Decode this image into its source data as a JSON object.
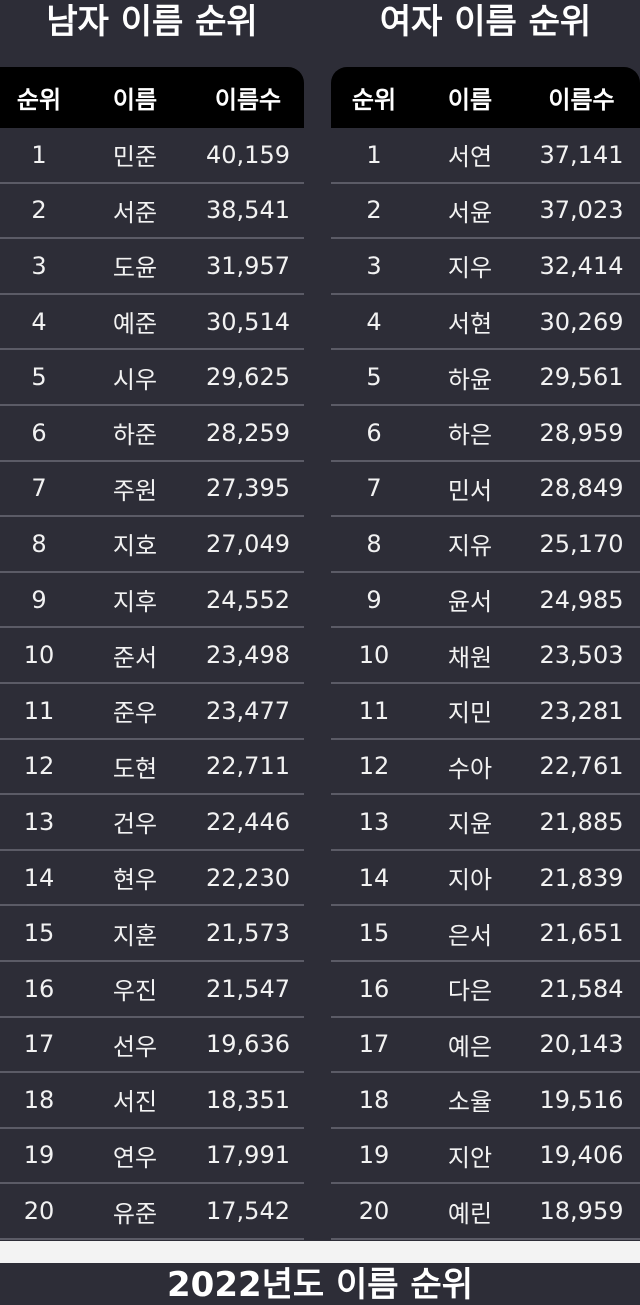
{
  "male": {
    "title": "남자 이름 순위",
    "headers": [
      "순위",
      "이름",
      "이름수"
    ],
    "rows": [
      [
        "1",
        "민준",
        "40,159"
      ],
      [
        "2",
        "서준",
        "38,541"
      ],
      [
        "3",
        "도윤",
        "31,957"
      ],
      [
        "4",
        "예준",
        "30,514"
      ],
      [
        "5",
        "시우",
        "29,625"
      ],
      [
        "6",
        "하준",
        "28,259"
      ],
      [
        "7",
        "주원",
        "27,395"
      ],
      [
        "8",
        "지호",
        "27,049"
      ],
      [
        "9",
        "지후",
        "24,552"
      ],
      [
        "10",
        "준서",
        "23,498"
      ],
      [
        "11",
        "준우",
        "23,477"
      ],
      [
        "12",
        "도현",
        "22,711"
      ],
      [
        "13",
        "건우",
        "22,446"
      ],
      [
        "14",
        "현우",
        "22,230"
      ],
      [
        "15",
        "지훈",
        "21,573"
      ],
      [
        "16",
        "우진",
        "21,547"
      ],
      [
        "17",
        "선우",
        "19,636"
      ],
      [
        "18",
        "서진",
        "18,351"
      ],
      [
        "19",
        "연우",
        "17,991"
      ],
      [
        "20",
        "유준",
        "17,542"
      ]
    ]
  },
  "female": {
    "title": "여자 이름 순위",
    "headers": [
      "순위",
      "이름",
      "이름수"
    ],
    "rows": [
      [
        "1",
        "서연",
        "37,141"
      ],
      [
        "2",
        "서윤",
        "37,023"
      ],
      [
        "3",
        "지우",
        "32,414"
      ],
      [
        "4",
        "서현",
        "30,269"
      ],
      [
        "5",
        "하윤",
        "29,561"
      ],
      [
        "6",
        "하은",
        "28,959"
      ],
      [
        "7",
        "민서",
        "28,849"
      ],
      [
        "8",
        "지유",
        "25,170"
      ],
      [
        "9",
        "윤서",
        "24,985"
      ],
      [
        "10",
        "채원",
        "23,503"
      ],
      [
        "11",
        "지민",
        "23,281"
      ],
      [
        "12",
        "수아",
        "22,761"
      ],
      [
        "13",
        "지윤",
        "21,885"
      ],
      [
        "14",
        "지아",
        "21,839"
      ],
      [
        "15",
        "은서",
        "21,651"
      ],
      [
        "16",
        "다은",
        "21,584"
      ],
      [
        "17",
        "예은",
        "20,143"
      ],
      [
        "18",
        "소율",
        "19,516"
      ],
      [
        "19",
        "지안",
        "19,406"
      ],
      [
        "20",
        "예린",
        "18,959"
      ]
    ]
  },
  "next_section": {
    "title": "2022년도 이름 순위"
  },
  "colors": {
    "background": "#2d2d37",
    "header": "#000000",
    "divider": "#5b5b66"
  }
}
